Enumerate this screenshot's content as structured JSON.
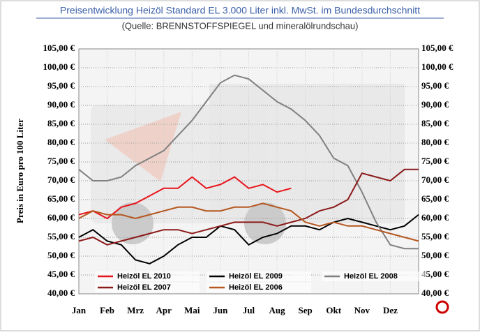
{
  "chart_data": {
    "type": "line",
    "title": "Preisentwicklung Heizöl Standard EL 3.000 Liter inkl. MwSt. im Bundesdurchschnitt",
    "subtitle": "(Quelle: BRENNSTOFFSPIEGEL und mineralölrundschau)",
    "y_label": "Preis in Euro pro 100 Liter",
    "x": [
      0,
      0.5,
      1,
      1.5,
      2,
      2.5,
      3,
      3.5,
      4,
      4.5,
      5,
      5.5,
      6,
      6.5,
      7,
      7.5,
      8,
      8.5,
      9,
      9.5,
      10,
      10.5,
      11,
      11.5,
      12
    ],
    "xlim": [
      0,
      12
    ],
    "xticks": [
      {
        "value": 0,
        "label": "Jan"
      },
      {
        "value": 1,
        "label": "Feb"
      },
      {
        "value": 2,
        "label": "Mrz"
      },
      {
        "value": 3,
        "label": "Apr"
      },
      {
        "value": 4,
        "label": "Mai"
      },
      {
        "value": 5,
        "label": "Jun"
      },
      {
        "value": 6,
        "label": "Jul"
      },
      {
        "value": 7,
        "label": "Aug"
      },
      {
        "value": 8,
        "label": "Sep"
      },
      {
        "value": 9,
        "label": "Okt"
      },
      {
        "value": 10,
        "label": "Nov"
      },
      {
        "value": 11,
        "label": "Dez"
      }
    ],
    "ylim": [
      40,
      105
    ],
    "yticks": [
      {
        "value": 40,
        "label": "40,00 €"
      },
      {
        "value": 45,
        "label": "45,00 €"
      },
      {
        "value": 50,
        "label": "50,00 €"
      },
      {
        "value": 55,
        "label": "55,00 €"
      },
      {
        "value": 60,
        "label": "60,00 €"
      },
      {
        "value": 65,
        "label": "65,00 €"
      },
      {
        "value": 70,
        "label": "70,00 €"
      },
      {
        "value": 75,
        "label": "75,00 €"
      },
      {
        "value": 80,
        "label": "80,00 €"
      },
      {
        "value": 85,
        "label": "85,00 €"
      },
      {
        "value": 90,
        "label": "90,00 €"
      },
      {
        "value": 95,
        "label": "95,00 €"
      },
      {
        "value": 100,
        "label": "100,00 €"
      },
      {
        "value": 105,
        "label": "105,00 €"
      }
    ],
    "grid": true,
    "series": [
      {
        "name": "Heizöl EL 2010",
        "color": "#e8141b",
        "values": [
          61,
          62,
          60,
          63,
          64,
          66,
          68,
          68,
          71,
          68,
          69,
          71,
          68,
          69,
          67,
          68,
          null,
          null,
          null,
          null,
          null,
          null,
          null,
          null,
          null
        ]
      },
      {
        "name": "Heizöl EL 2009",
        "color": "#000000",
        "values": [
          55,
          57,
          54,
          53,
          49,
          48,
          50,
          53,
          55,
          55,
          58,
          57,
          53,
          55,
          56,
          58,
          58,
          57,
          59,
          60,
          59,
          58,
          57,
          58,
          61
        ]
      },
      {
        "name": "Heizöl EL 2008",
        "color": "#808080",
        "values": [
          73,
          70,
          70,
          71,
          74,
          76,
          78,
          82,
          86,
          91,
          96,
          98,
          97,
          94,
          91,
          89,
          86,
          82,
          76,
          74,
          67,
          59,
          53,
          52,
          52
        ]
      },
      {
        "name": "Heizöl EL 2007",
        "color": "#8b1a1a",
        "values": [
          54,
          55,
          53,
          54,
          55,
          56,
          57,
          57,
          56,
          57,
          58,
          59,
          59,
          59,
          58,
          59,
          60,
          62,
          63,
          65,
          72,
          71,
          70,
          73,
          73
        ]
      },
      {
        "name": "Heizöl EL 2006",
        "color": "#b5561e",
        "values": [
          60,
          62,
          61,
          61,
          60,
          61,
          62,
          63,
          63,
          62,
          62,
          63,
          63,
          64,
          63,
          62,
          59,
          58,
          59,
          58,
          58,
          57,
          56,
          55,
          54
        ]
      }
    ]
  }
}
